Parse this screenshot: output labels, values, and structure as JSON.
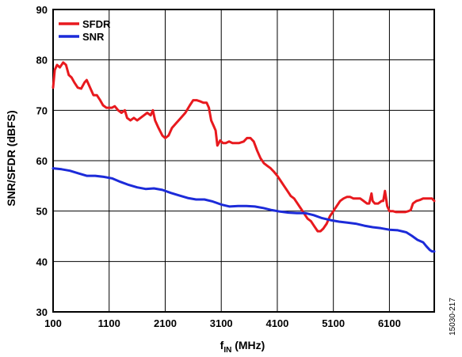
{
  "chart_data": {
    "type": "line",
    "xlabel_main": "f",
    "xlabel_sub": "IN",
    "xlabel_unit": " (MHz)",
    "ylabel": "SNR/SFDR (dBFS)",
    "figure_id": "15030-217",
    "xlim": [
      100,
      6900
    ],
    "ylim": [
      30,
      90
    ],
    "x_ticks": [
      100,
      1100,
      2100,
      3100,
      4100,
      5100,
      6100
    ],
    "y_ticks": [
      30,
      40,
      50,
      60,
      70,
      80,
      90
    ],
    "grid": true,
    "legend_position": "top-left",
    "series": [
      {
        "name": "SFDR",
        "color": "#e8191e",
        "points": [
          [
            100,
            74.5
          ],
          [
            130,
            78
          ],
          [
            170,
            79
          ],
          [
            220,
            78.5
          ],
          [
            280,
            79.5
          ],
          [
            330,
            79
          ],
          [
            380,
            77
          ],
          [
            430,
            76.5
          ],
          [
            480,
            75.5
          ],
          [
            540,
            74.5
          ],
          [
            600,
            74.3
          ],
          [
            660,
            75.5
          ],
          [
            700,
            76
          ],
          [
            760,
            74.5
          ],
          [
            820,
            73
          ],
          [
            880,
            73
          ],
          [
            940,
            72
          ],
          [
            990,
            71
          ],
          [
            1050,
            70.5
          ],
          [
            1100,
            70.5
          ],
          [
            1150,
            70.5
          ],
          [
            1200,
            70.8
          ],
          [
            1260,
            70
          ],
          [
            1320,
            69.5
          ],
          [
            1380,
            70
          ],
          [
            1420,
            68.5
          ],
          [
            1480,
            68
          ],
          [
            1540,
            68.5
          ],
          [
            1600,
            68
          ],
          [
            1660,
            68.5
          ],
          [
            1720,
            69
          ],
          [
            1780,
            69.5
          ],
          [
            1840,
            69
          ],
          [
            1880,
            70
          ],
          [
            1920,
            68
          ],
          [
            1980,
            66.5
          ],
          [
            2050,
            65
          ],
          [
            2100,
            64.5
          ],
          [
            2160,
            65
          ],
          [
            2220,
            66.5
          ],
          [
            2300,
            67.5
          ],
          [
            2380,
            68.5
          ],
          [
            2460,
            69.5
          ],
          [
            2540,
            71
          ],
          [
            2600,
            72
          ],
          [
            2660,
            72
          ],
          [
            2720,
            71.8
          ],
          [
            2780,
            71.5
          ],
          [
            2840,
            71.5
          ],
          [
            2880,
            70.5
          ],
          [
            2920,
            68
          ],
          [
            2960,
            67
          ],
          [
            3000,
            66
          ],
          [
            3030,
            63
          ],
          [
            3080,
            64
          ],
          [
            3130,
            63.5
          ],
          [
            3180,
            63.5
          ],
          [
            3240,
            63.8
          ],
          [
            3300,
            63.5
          ],
          [
            3360,
            63.5
          ],
          [
            3420,
            63.5
          ],
          [
            3500,
            63.8
          ],
          [
            3560,
            64.5
          ],
          [
            3620,
            64.5
          ],
          [
            3680,
            63.8
          ],
          [
            3740,
            62
          ],
          [
            3800,
            60.5
          ],
          [
            3860,
            59.5
          ],
          [
            3920,
            59
          ],
          [
            3980,
            58.5
          ],
          [
            4040,
            57.8
          ],
          [
            4100,
            57
          ],
          [
            4160,
            56
          ],
          [
            4220,
            55
          ],
          [
            4280,
            54
          ],
          [
            4340,
            53
          ],
          [
            4400,
            52.5
          ],
          [
            4460,
            51.5
          ],
          [
            4520,
            50.5
          ],
          [
            4580,
            49.5
          ],
          [
            4640,
            48.5
          ],
          [
            4700,
            48
          ],
          [
            4760,
            47
          ],
          [
            4820,
            46
          ],
          [
            4870,
            46
          ],
          [
            4920,
            46.5
          ],
          [
            4980,
            47.5
          ],
          [
            5040,
            49
          ],
          [
            5100,
            50
          ],
          [
            5160,
            51
          ],
          [
            5220,
            52
          ],
          [
            5280,
            52.5
          ],
          [
            5340,
            52.8
          ],
          [
            5400,
            52.8
          ],
          [
            5460,
            52.5
          ],
          [
            5520,
            52.5
          ],
          [
            5580,
            52.5
          ],
          [
            5640,
            52
          ],
          [
            5700,
            51.5
          ],
          [
            5740,
            51.5
          ],
          [
            5780,
            53.5
          ],
          [
            5800,
            52
          ],
          [
            5840,
            51.5
          ],
          [
            5900,
            51.5
          ],
          [
            5960,
            52
          ],
          [
            5990,
            52
          ],
          [
            6020,
            54
          ],
          [
            6060,
            51
          ],
          [
            6100,
            50
          ],
          [
            6160,
            50
          ],
          [
            6220,
            49.8
          ],
          [
            6300,
            49.8
          ],
          [
            6380,
            49.8
          ],
          [
            6440,
            50
          ],
          [
            6480,
            50.2
          ],
          [
            6520,
            51.5
          ],
          [
            6580,
            52
          ],
          [
            6640,
            52.2
          ],
          [
            6700,
            52.5
          ],
          [
            6760,
            52.5
          ],
          [
            6820,
            52.5
          ],
          [
            6860,
            52.5
          ],
          [
            6900,
            52
          ]
        ]
      },
      {
        "name": "SNR",
        "color": "#1c2bd9",
        "points": [
          [
            100,
            58.5
          ],
          [
            250,
            58.3
          ],
          [
            400,
            58
          ],
          [
            550,
            57.5
          ],
          [
            700,
            57
          ],
          [
            850,
            57
          ],
          [
            1000,
            56.8
          ],
          [
            1150,
            56.5
          ],
          [
            1300,
            55.8
          ],
          [
            1450,
            55.2
          ],
          [
            1600,
            54.7
          ],
          [
            1750,
            54.4
          ],
          [
            1900,
            54.5
          ],
          [
            2050,
            54.2
          ],
          [
            2200,
            53.6
          ],
          [
            2350,
            53.1
          ],
          [
            2500,
            52.6
          ],
          [
            2650,
            52.3
          ],
          [
            2800,
            52.3
          ],
          [
            2950,
            51.9
          ],
          [
            3100,
            51.3
          ],
          [
            3250,
            50.9
          ],
          [
            3400,
            51
          ],
          [
            3550,
            51
          ],
          [
            3700,
            50.9
          ],
          [
            3850,
            50.6
          ],
          [
            4000,
            50.2
          ],
          [
            4150,
            49.9
          ],
          [
            4300,
            49.7
          ],
          [
            4450,
            49.6
          ],
          [
            4600,
            49.6
          ],
          [
            4750,
            49.2
          ],
          [
            4900,
            48.6
          ],
          [
            5050,
            48.2
          ],
          [
            5200,
            47.9
          ],
          [
            5350,
            47.7
          ],
          [
            5500,
            47.5
          ],
          [
            5650,
            47.1
          ],
          [
            5800,
            46.8
          ],
          [
            5950,
            46.6
          ],
          [
            6100,
            46.3
          ],
          [
            6250,
            46.2
          ],
          [
            6400,
            45.8
          ],
          [
            6500,
            45.1
          ],
          [
            6600,
            44.3
          ],
          [
            6700,
            43.8
          ],
          [
            6760,
            43
          ],
          [
            6820,
            42.3
          ],
          [
            6860,
            42
          ],
          [
            6900,
            42
          ]
        ]
      }
    ]
  }
}
